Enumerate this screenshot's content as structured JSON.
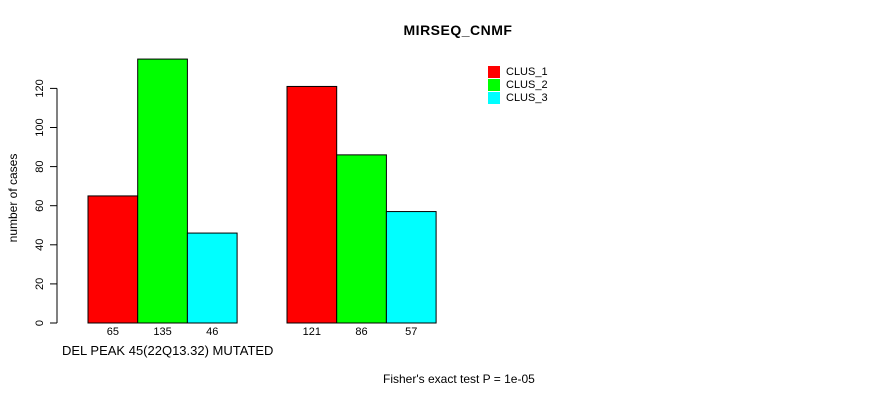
{
  "chart_data": {
    "type": "bar",
    "title": "MIRSEQ_CNMF",
    "ylabel": "number of cases",
    "xlabel": "DEL PEAK 45(22Q13.32) MUTATED",
    "annotation": "Fisher's exact test P = 1e-05",
    "group_count": 2,
    "series": [
      {
        "name": "CLUS_1",
        "color": "#ff0000",
        "values": [
          65,
          121
        ]
      },
      {
        "name": "CLUS_2",
        "color": "#00ff00",
        "values": [
          135,
          86
        ]
      },
      {
        "name": "CLUS_3",
        "color": "#00ffff",
        "values": [
          46,
          57
        ]
      }
    ],
    "bar_value_labels": [
      [
        65,
        135,
        46
      ],
      [
        121,
        86,
        57
      ]
    ],
    "y_ticks": [
      0,
      20,
      40,
      60,
      80,
      100,
      120
    ],
    "ylim": [
      0,
      135
    ],
    "grid": false,
    "bar_border_color": "#000000",
    "legend_position": "top-right",
    "background_color": "#ffffff"
  }
}
